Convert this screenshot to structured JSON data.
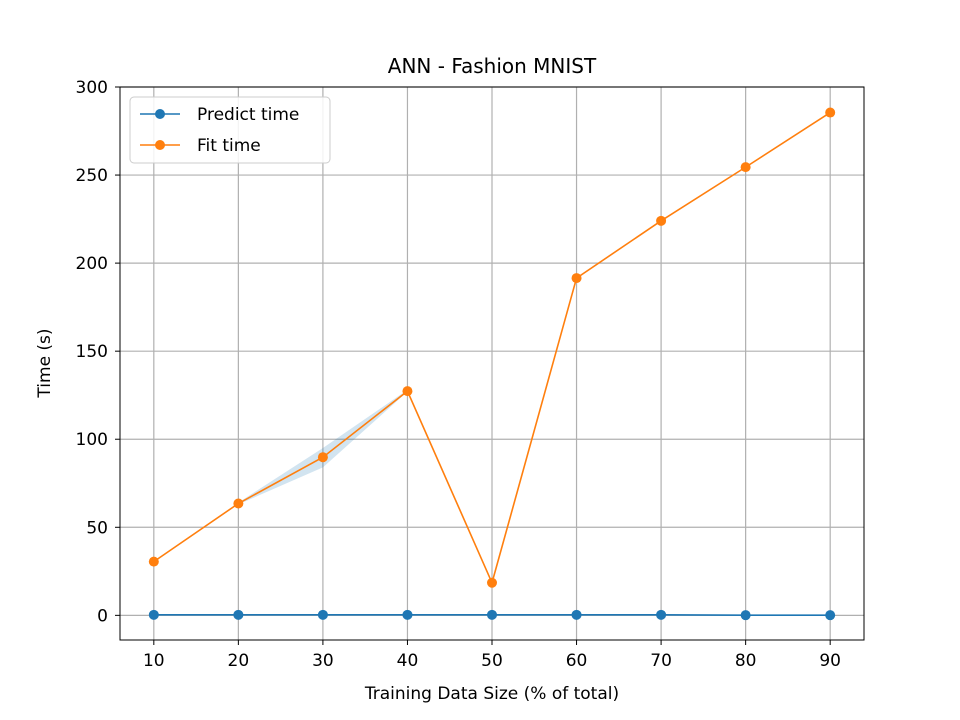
{
  "chart_data": {
    "type": "line",
    "title": "ANN - Fashion MNIST",
    "xlabel": "Training Data Size (% of total)",
    "ylabel": "Time (s)",
    "x": [
      10,
      20,
      30,
      40,
      50,
      60,
      70,
      80,
      90
    ],
    "xticks": [
      "10",
      "20",
      "30",
      "40",
      "50",
      "60",
      "70",
      "80",
      "90"
    ],
    "yticks": [
      "0",
      "50",
      "100",
      "150",
      "200",
      "250",
      "300"
    ],
    "xlim": [
      6,
      94
    ],
    "ylim": [
      -14,
      300
    ],
    "grid": true,
    "legend_position": "top-left",
    "series": [
      {
        "name": "Predict time",
        "color": "#1f77b4",
        "values": [
          0.3,
          0.3,
          0.3,
          0.3,
          0.3,
          0.3,
          0.3,
          0.1,
          0.1
        ]
      },
      {
        "name": "Fit time",
        "color": "#ff7f0e",
        "values": [
          30.5,
          63.5,
          89.8,
          127.3,
          18.5,
          191.5,
          224.0,
          254.5,
          285.5
        ]
      }
    ],
    "band": {
      "color": "#1f77b4",
      "x": [
        20,
        30,
        40
      ],
      "lower": [
        63,
        84,
        127
      ],
      "upper": [
        64,
        95,
        128
      ]
    }
  }
}
